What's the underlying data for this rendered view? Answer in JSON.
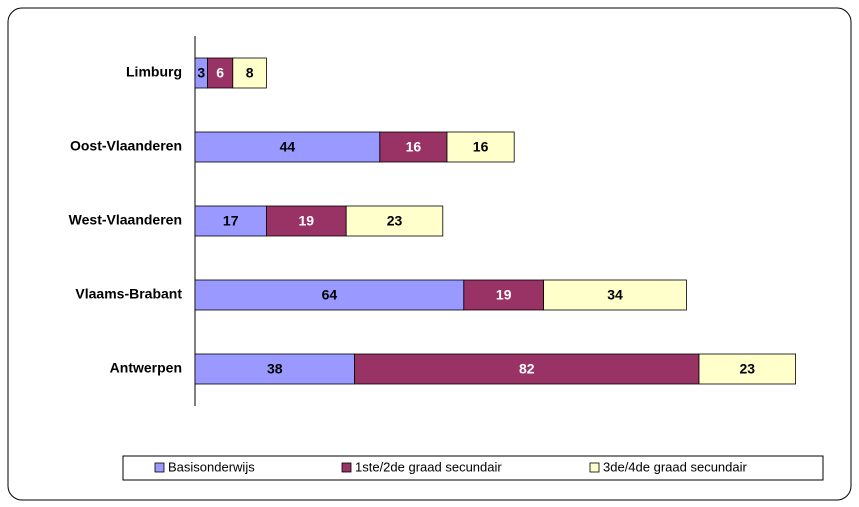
{
  "chart_data": {
    "type": "stacked-barh",
    "categories": [
      "Limburg",
      "Oost-Vlaanderen",
      "West-Vlaanderen",
      "Vlaams-Brabant",
      "Antwerpen"
    ],
    "series": [
      {
        "name": "Basisonderwijs",
        "color": "#9999ff",
        "values": [
          3,
          44,
          17,
          64,
          38
        ]
      },
      {
        "name": "1ste/2de graad secundair",
        "color": "#993366",
        "values": [
          6,
          16,
          19,
          19,
          82
        ]
      },
      {
        "name": "3de/4de graad secundair",
        "color": "#ffffcc",
        "values": [
          8,
          16,
          23,
          34,
          23
        ]
      }
    ],
    "legend": "bottom"
  }
}
